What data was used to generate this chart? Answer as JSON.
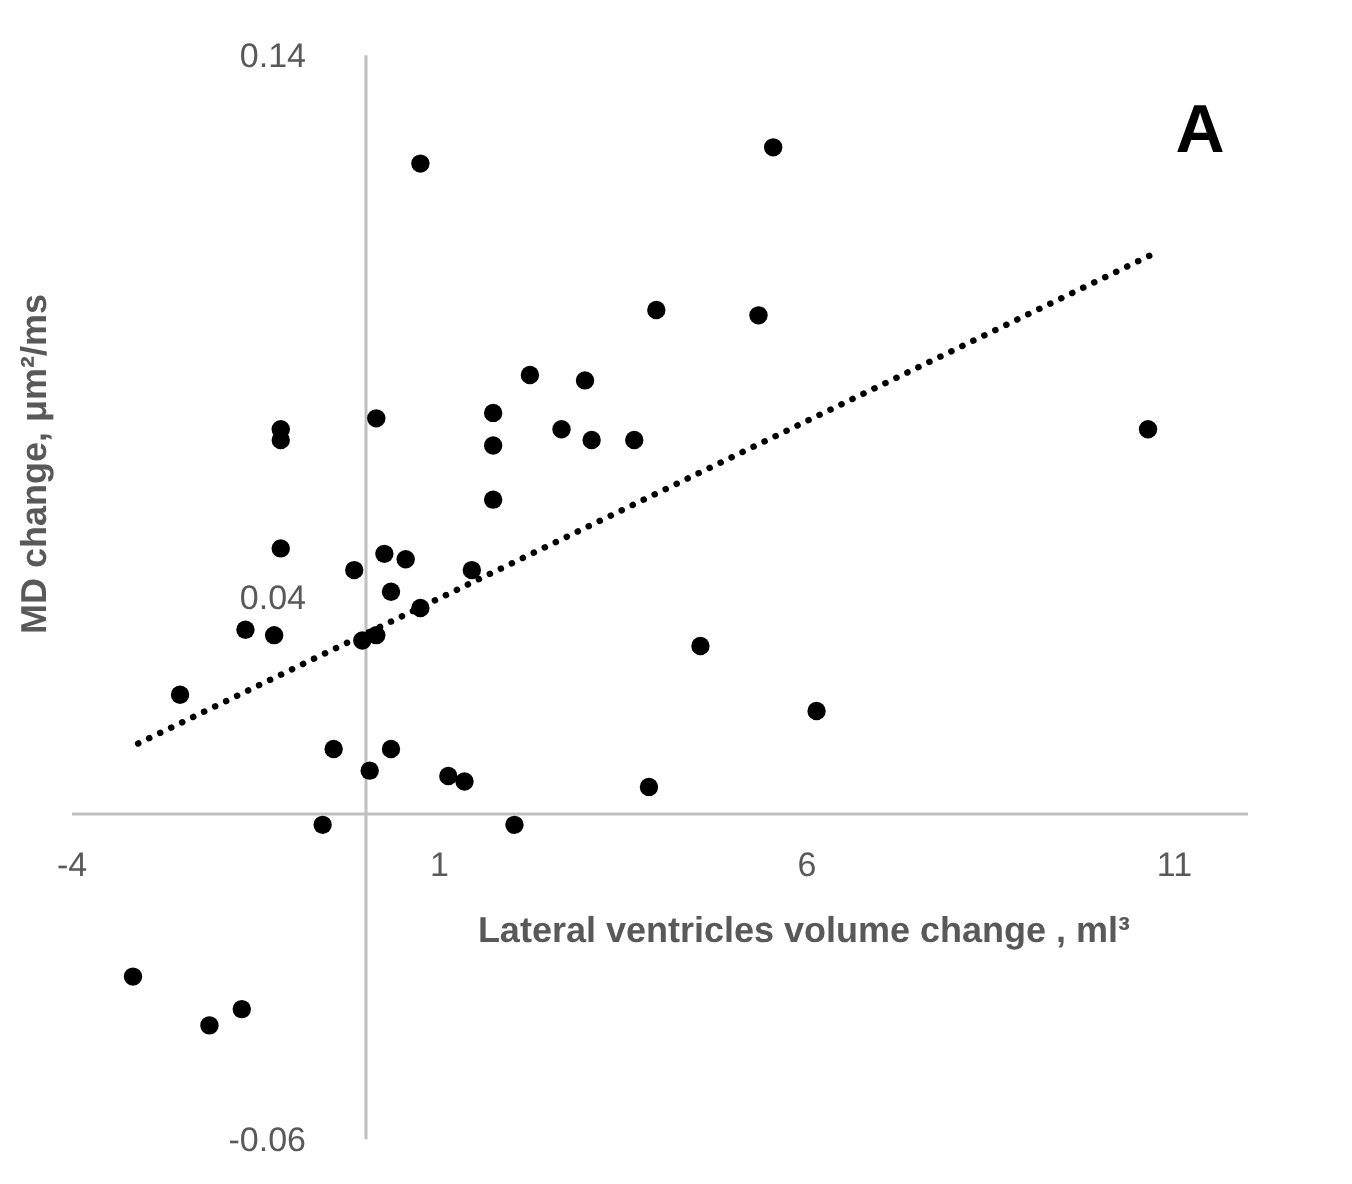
{
  "chart_data": {
    "type": "scatter",
    "xlabel": "Lateral ventricles volume change , ml³",
    "ylabel": "MD change, μm²/ms",
    "annotations": [
      "A"
    ],
    "xlim": [
      -4,
      12
    ],
    "xticks": [
      -4,
      1,
      6,
      11
    ],
    "ylim": [
      -0.06,
      0.14
    ],
    "yticks": [
      -0.06,
      0.04,
      0.14
    ],
    "grid": false,
    "marker": "circle",
    "series": [
      {
        "color": "#000000",
        "x": [
          0.74,
          3.95,
          2.23,
          2.98,
          1.73,
          2.66,
          3.07,
          3.65,
          1.73,
          1.73,
          0.14,
          -1.16,
          -1.16,
          -1.16,
          0.25,
          0.54,
          -0.16,
          1.44,
          0.34,
          0.74,
          5.54,
          5.34,
          10.64,
          -1.64,
          -1.25,
          -0.05,
          0.14,
          -2.53,
          -0.44,
          0.34,
          0.05,
          1.12,
          1.34,
          3.85,
          -0.59,
          2.02,
          -3.17,
          -2.13,
          -1.69,
          4.55,
          6.13
        ],
        "values": [
          0.12,
          0.093,
          0.081,
          0.08,
          0.074,
          0.071,
          0.069,
          0.069,
          0.068,
          0.058,
          0.073,
          0.071,
          0.069,
          0.049,
          0.048,
          0.047,
          0.045,
          0.045,
          0.041,
          0.038,
          0.123,
          0.092,
          0.071,
          0.034,
          0.033,
          0.032,
          0.033,
          0.022,
          0.012,
          0.012,
          0.008,
          0.007,
          0.006,
          0.005,
          -0.002,
          -0.002,
          -0.03,
          -0.039,
          -0.036,
          0.031,
          0.019
        ]
      },
      {
        "type": "line",
        "color": "#000000",
        "line_style": "dotted",
        "marker": "none",
        "x": [
          -3.1,
          10.66
        ],
        "values": [
          0.013,
          0.103
        ]
      }
    ]
  }
}
